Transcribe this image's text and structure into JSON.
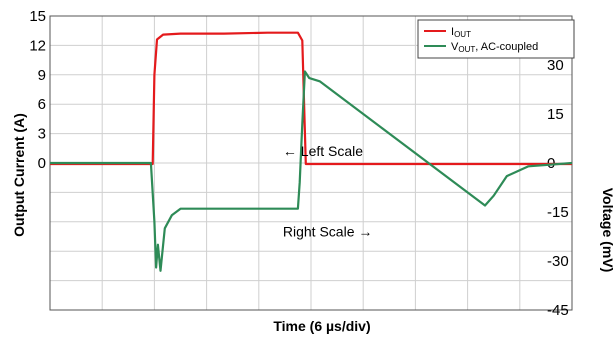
{
  "chart_data": {
    "type": "line",
    "xlabel": "Time (6 µs/div)",
    "ylabel_left": "Output Current (A)",
    "ylabel_right": "Voltage (mV)",
    "x_divisions": 10,
    "grid": true,
    "legend_position": "top-right",
    "left_axis": {
      "ylim": [
        -15,
        15
      ],
      "ticks": [
        "15",
        "12",
        "9",
        "6",
        "3",
        "0"
      ],
      "tick_values": [
        15,
        12,
        9,
        6,
        3,
        0
      ]
    },
    "right_axis": {
      "ylim": [
        -45,
        45
      ],
      "ticks": [
        "30",
        "15",
        "0",
        "-15",
        "-30",
        "-45"
      ],
      "tick_values": [
        30,
        15,
        0,
        -15,
        -30,
        -45
      ]
    },
    "annotations": [
      {
        "text": "← Left Scale",
        "x": 27,
        "y_left": 1.2
      },
      {
        "text": "Right Scale →",
        "x": 27,
        "y_right": -21
      }
    ],
    "series": [
      {
        "name_main": "I",
        "name_sub": "OUT",
        "name_suffix": "",
        "axis": "left",
        "color": "#e41a1c",
        "x": [
          0,
          11.8,
          12.0,
          12.3,
          13.0,
          15,
          20,
          25,
          28.5,
          29.0,
          29.4,
          30,
          35,
          40,
          45,
          50,
          55,
          60
        ],
        "y": [
          -0.1,
          -0.1,
          9.0,
          12.6,
          13.1,
          13.2,
          13.2,
          13.3,
          13.3,
          12.5,
          -0.1,
          -0.1,
          -0.1,
          -0.1,
          -0.1,
          -0.1,
          -0.1,
          -0.1
        ]
      },
      {
        "name_main": "V",
        "name_sub": "OUT",
        "name_suffix": ", AC-coupled",
        "axis": "right",
        "color": "#2e8b57",
        "x": [
          0,
          11.6,
          12.0,
          12.2,
          12.4,
          12.7,
          13.2,
          14.0,
          15.0,
          20,
          25,
          28.5,
          28.7,
          29.0,
          29.3,
          29.8,
          31,
          40,
          50,
          51,
          52.5,
          55,
          60
        ],
        "y": [
          0,
          0,
          -18,
          -32,
          -25,
          -33,
          -20,
          -16,
          -14,
          -14,
          -14,
          -14,
          -6,
          12,
          28,
          26,
          25,
          7,
          -13,
          -10,
          -4,
          -1,
          0
        ]
      }
    ]
  }
}
